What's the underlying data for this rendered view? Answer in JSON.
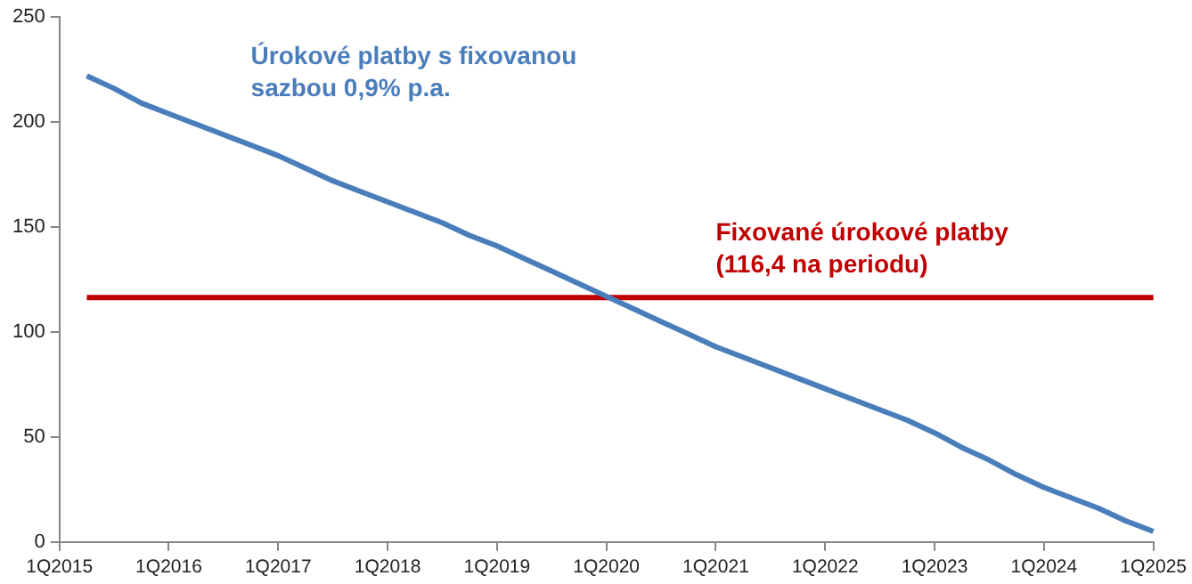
{
  "chart_data": {
    "type": "line",
    "categories": [
      "1Q2015",
      null,
      null,
      null,
      "1Q2016",
      null,
      null,
      null,
      "1Q2017",
      null,
      null,
      null,
      "1Q2018",
      null,
      null,
      null,
      "1Q2019",
      null,
      null,
      null,
      "1Q2020",
      null,
      null,
      null,
      "1Q2021",
      null,
      null,
      null,
      "1Q2022",
      null,
      null,
      null,
      "1Q2023",
      null,
      null,
      null,
      "1Q2024",
      null,
      null,
      null,
      "1Q2025"
    ],
    "series": [
      {
        "name": "Úrokové platby s fixovanou sazbou 0,9% p.a.",
        "color": "#4a7ebb",
        "values": [
          null,
          222,
          216,
          209,
          204,
          199,
          194,
          189,
          184,
          178,
          172,
          167,
          162,
          157,
          152,
          146,
          141,
          135,
          129,
          123,
          117,
          111,
          105,
          99,
          93,
          88,
          83,
          78,
          73,
          68,
          63,
          58,
          52,
          45,
          39,
          32,
          26,
          21,
          16,
          10,
          5
        ]
      },
      {
        "name": "Fixované úrokové platby (116,4 na periodu)",
        "color": "#c00000",
        "values": [
          null,
          116.4,
          116.4,
          116.4,
          116.4,
          116.4,
          116.4,
          116.4,
          116.4,
          116.4,
          116.4,
          116.4,
          116.4,
          116.4,
          116.4,
          116.4,
          116.4,
          116.4,
          116.4,
          116.4,
          116.4,
          116.4,
          116.4,
          116.4,
          116.4,
          116.4,
          116.4,
          116.4,
          116.4,
          116.4,
          116.4,
          116.4,
          116.4,
          116.4,
          116.4,
          116.4,
          116.4,
          116.4,
          116.4,
          116.4,
          116.4
        ]
      }
    ],
    "ylim": [
      0,
      250
    ],
    "yticks": [
      0,
      50,
      100,
      150,
      200,
      250
    ],
    "grid": false,
    "legend": false,
    "marker": "none",
    "line_style": "solid"
  }
}
